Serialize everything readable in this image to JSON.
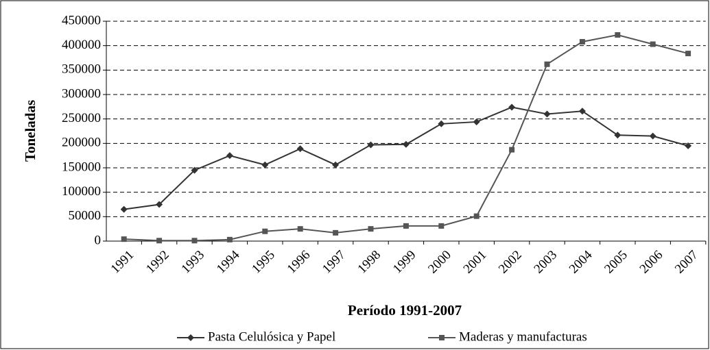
{
  "chart_data": {
    "type": "line",
    "categories": [
      "1991",
      "1992",
      "1993",
      "1994",
      "1995",
      "1996",
      "1997",
      "1998",
      "1999",
      "2000",
      "2001",
      "2002",
      "2003",
      "2004",
      "2005",
      "2006",
      "2007"
    ],
    "series": [
      {
        "name": "Pasta Celulósica y Papel",
        "color": "#333333",
        "marker": "diamond",
        "values": [
          65000,
          75000,
          145000,
          175000,
          156000,
          189000,
          156000,
          197000,
          198000,
          240000,
          244000,
          274000,
          260000,
          266000,
          217000,
          215000,
          195000
        ]
      },
      {
        "name": "Maderas y manufacturas",
        "color": "#555555",
        "marker": "square",
        "values": [
          4000,
          1000,
          1000,
          3000,
          20000,
          25000,
          17000,
          25000,
          31000,
          31000,
          51000,
          187000,
          362000,
          408000,
          422000,
          403000,
          384000
        ]
      }
    ],
    "xlabel": "Período 1991-2007",
    "ylabel": "Toneladas",
    "ylim": [
      0,
      450000
    ],
    "yticks": [
      0,
      50000,
      100000,
      150000,
      200000,
      250000,
      300000,
      350000,
      400000,
      450000
    ],
    "grid": true,
    "legend": "bottom"
  }
}
